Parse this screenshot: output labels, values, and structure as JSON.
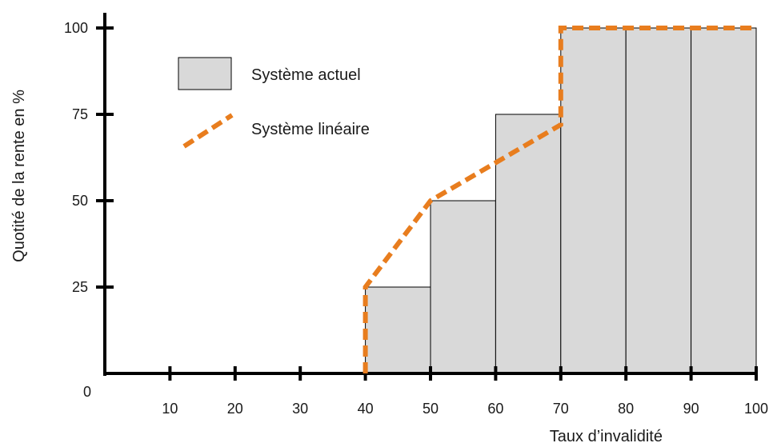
{
  "chart_data": {
    "type": "bar",
    "title": "",
    "xlabel": "Taux d’invalidité",
    "ylabel": "Quotité de la rente en %",
    "x_ticks": [
      "0",
      "10",
      "20",
      "30",
      "40",
      "50",
      "60",
      "70",
      "80",
      "90",
      "100"
    ],
    "y_ticks": [
      "25",
      "50",
      "75",
      "100"
    ],
    "xlim": [
      0,
      100
    ],
    "ylim": [
      0,
      100
    ],
    "grid": false,
    "legend_position": "top-left",
    "series": [
      {
        "name": "Système actuel",
        "kind": "step-bars",
        "color": "#d9d9d9",
        "edge_color": "#000000",
        "bins": [
          {
            "from": 40,
            "to": 50,
            "value": 25
          },
          {
            "from": 50,
            "to": 60,
            "value": 50
          },
          {
            "from": 60,
            "to": 70,
            "value": 75
          },
          {
            "from": 70,
            "to": 80,
            "value": 100
          },
          {
            "from": 80,
            "to": 90,
            "value": 100
          },
          {
            "from": 90,
            "to": 100,
            "value": 100
          }
        ]
      },
      {
        "name": "Système linéaire",
        "kind": "dashed-line",
        "color": "#e87d1e",
        "points": [
          [
            40,
            0
          ],
          [
            40,
            25
          ],
          [
            50,
            50
          ],
          [
            70,
            72
          ],
          [
            70,
            100
          ],
          [
            100,
            100
          ]
        ]
      }
    ]
  }
}
